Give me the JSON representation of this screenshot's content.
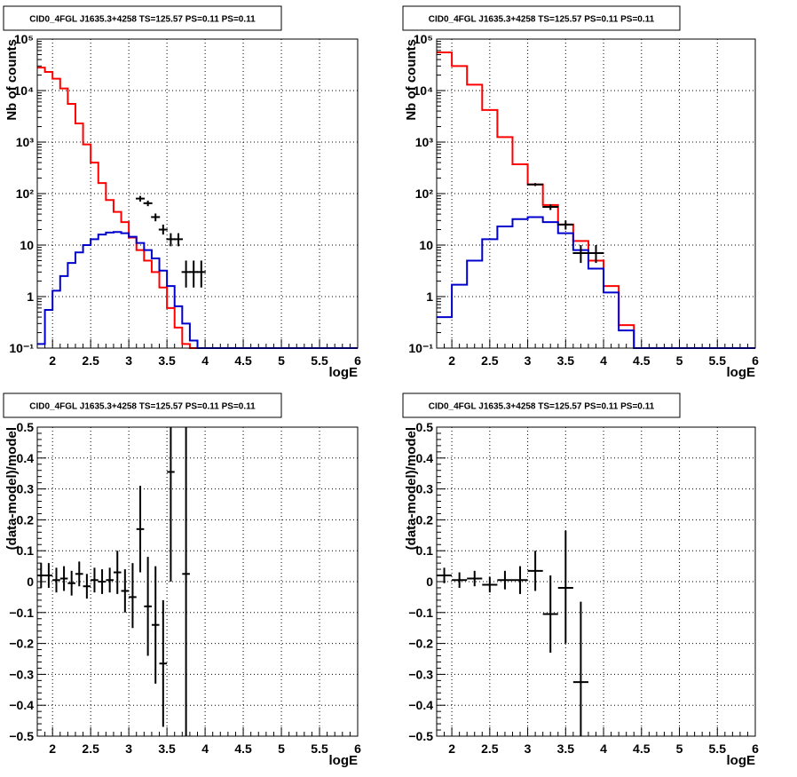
{
  "colors": {
    "model_total": "#ff0000",
    "model_source": "#0000cc",
    "data": "#000000",
    "grid": "#000000"
  },
  "chart_data": [
    {
      "type": "line",
      "title": "CID0_4FGL J1635.3+4258 TS=125.57 PS=0.11 PS=0.11",
      "xlabel": "logE",
      "ylabel": "Nb of counts",
      "ylog": true,
      "xlim": [
        1.8,
        6.0
      ],
      "ylim": [
        0.1,
        100000
      ],
      "grid": true,
      "x_ticks": [
        {
          "v": 2,
          "t": "2"
        },
        {
          "v": 2.5,
          "t": "2.5"
        },
        {
          "v": 3,
          "t": "3"
        },
        {
          "v": 3.5,
          "t": "3.5"
        },
        {
          "v": 4,
          "t": "4"
        },
        {
          "v": 4.5,
          "t": "4.5"
        },
        {
          "v": 5,
          "t": "5"
        },
        {
          "v": 5.5,
          "t": "5.5"
        },
        {
          "v": 6,
          "t": "6"
        }
      ],
      "y_ticks": [
        {
          "v": 0.1,
          "t": "10⁻¹"
        },
        {
          "v": 1,
          "t": "1"
        },
        {
          "v": 10,
          "t": "10"
        },
        {
          "v": 100,
          "t": "10²"
        },
        {
          "v": 1000,
          "t": "10³"
        },
        {
          "v": 10000,
          "t": "10⁴"
        },
        {
          "v": 100000,
          "t": "10⁵"
        }
      ],
      "bin_edges": [
        1.8,
        1.9,
        2.0,
        2.1,
        2.2,
        2.3,
        2.4,
        2.5,
        2.6,
        2.7,
        2.8,
        2.9,
        3.0,
        3.1,
        3.2,
        3.3,
        3.4,
        3.5,
        3.6,
        3.7,
        3.8,
        3.9,
        4.0,
        4.1,
        4.2,
        4.3,
        4.4,
        4.5,
        4.6,
        4.7,
        4.8,
        4.9,
        5.0,
        5.1,
        5.2,
        5.3,
        5.4,
        5.5,
        5.6,
        5.7,
        5.8,
        5.9,
        6.0
      ],
      "series": [
        {
          "color": "#ff0000",
          "values": [
            28000,
            23000,
            17000,
            11000,
            5500,
            2300,
            900,
            400,
            160,
            75,
            44,
            28,
            14,
            8,
            5,
            3,
            1.5,
            0.6,
            0.25,
            0.12,
            0.1,
            0.1,
            0.1,
            0.1,
            0.1,
            0.1,
            0.1,
            0.1,
            0.1,
            0.1,
            0.1,
            0.1,
            0.1,
            0.1,
            0.1,
            0.1,
            0.1,
            0.1,
            0.1,
            0.1,
            0.1,
            0.1
          ]
        },
        {
          "color": "#0000cc",
          "values": [
            0.12,
            0.55,
            1.3,
            2.5,
            4.5,
            7.2,
            10,
            13,
            16,
            17.5,
            18,
            17,
            14.5,
            11,
            8,
            5.5,
            3.2,
            1.6,
            0.65,
            0.3,
            0.14,
            0.1,
            0.1,
            0.1,
            0.1,
            0.1,
            0.1,
            0.1,
            0.1,
            0.1,
            0.1,
            0.1,
            0.1,
            0.1,
            0.1,
            0.1,
            0.1,
            0.1,
            0.1,
            0.1,
            0.1,
            0.1
          ]
        }
      ],
      "data_points": [
        {
          "x": 3.15,
          "y": 80,
          "ylo": 70,
          "yhi": 90
        },
        {
          "x": 3.25,
          "y": 65,
          "ylo": 57,
          "yhi": 73
        },
        {
          "x": 3.35,
          "y": 35,
          "ylo": 29,
          "yhi": 41
        },
        {
          "x": 3.45,
          "y": 20,
          "ylo": 16,
          "yhi": 25
        },
        {
          "x": 3.55,
          "y": 13,
          "ylo": 9.5,
          "yhi": 17
        },
        {
          "x": 3.65,
          "y": 13,
          "ylo": 9.5,
          "yhi": 17
        },
        {
          "x": 3.75,
          "y": 3,
          "ylo": 1.5,
          "yhi": 5
        },
        {
          "x": 3.85,
          "y": 3,
          "ylo": 1.5,
          "yhi": 5
        },
        {
          "x": 3.95,
          "y": 3,
          "ylo": 1.5,
          "yhi": 5
        }
      ]
    },
    {
      "type": "line",
      "title": "CID0_4FGL J1635.3+4258 TS=125.57 PS=0.11 PS=0.11",
      "xlabel": "logE",
      "ylabel": "Nb of counts",
      "ylog": true,
      "xlim": [
        1.8,
        6.0
      ],
      "ylim": [
        0.1,
        100000
      ],
      "grid": true,
      "x_ticks": [
        {
          "v": 2,
          "t": "2"
        },
        {
          "v": 2.5,
          "t": "2.5"
        },
        {
          "v": 3,
          "t": "3"
        },
        {
          "v": 3.5,
          "t": "3.5"
        },
        {
          "v": 4,
          "t": "4"
        },
        {
          "v": 4.5,
          "t": "4.5"
        },
        {
          "v": 5,
          "t": "5"
        },
        {
          "v": 5.5,
          "t": "5.5"
        },
        {
          "v": 6,
          "t": "6"
        }
      ],
      "y_ticks": [
        {
          "v": 0.1,
          "t": "10⁻¹"
        },
        {
          "v": 1,
          "t": "1"
        },
        {
          "v": 10,
          "t": "10"
        },
        {
          "v": 100,
          "t": "10²"
        },
        {
          "v": 1000,
          "t": "10³"
        },
        {
          "v": 10000,
          "t": "10⁴"
        },
        {
          "v": 100000,
          "t": "10⁵"
        }
      ],
      "bin_edges": [
        1.8,
        2.0,
        2.2,
        2.4,
        2.6,
        2.8,
        3.0,
        3.2,
        3.4,
        3.6,
        3.8,
        4.0,
        4.2,
        4.4,
        4.6,
        4.8,
        5.0,
        5.2,
        5.4,
        5.6,
        5.8,
        6.0
      ],
      "series": [
        {
          "color": "#ff0000",
          "values": [
            55000,
            30000,
            13000,
            4200,
            1250,
            370,
            150,
            60,
            25,
            12,
            5,
            1.6,
            0.28,
            0.1,
            0.1,
            0.1,
            0.1,
            0.1,
            0.1,
            0.1,
            0.1
          ]
        },
        {
          "color": "#0000cc",
          "values": [
            0.4,
            1.7,
            5,
            13,
            23,
            32,
            35,
            28,
            17,
            8,
            3.5,
            1.2,
            0.22,
            0.1,
            0.1,
            0.1,
            0.1,
            0.1,
            0.1,
            0.1,
            0.1
          ]
        }
      ],
      "data_points": [
        {
          "x": 3.1,
          "y": 150,
          "ylo": 140,
          "yhi": 160
        },
        {
          "x": 3.3,
          "y": 55,
          "ylo": 48,
          "yhi": 62
        },
        {
          "x": 3.5,
          "y": 25,
          "ylo": 20,
          "yhi": 30
        },
        {
          "x": 3.7,
          "y": 7,
          "ylo": 4.5,
          "yhi": 10
        },
        {
          "x": 3.9,
          "y": 7,
          "ylo": 4.5,
          "yhi": 10
        }
      ]
    },
    {
      "type": "scatter",
      "title": "CID0_4FGL J1635.3+4258 TS=125.57 PS=0.11 PS=0.11",
      "xlabel": "logE",
      "ylabel": "(data-model)/model",
      "ylog": false,
      "xlim": [
        1.8,
        6.0
      ],
      "ylim": [
        -0.5,
        0.5
      ],
      "grid": true,
      "x_ticks": [
        {
          "v": 2,
          "t": "2"
        },
        {
          "v": 2.5,
          "t": "2.5"
        },
        {
          "v": 3,
          "t": "3"
        },
        {
          "v": 3.5,
          "t": "3.5"
        },
        {
          "v": 4,
          "t": "4"
        },
        {
          "v": 4.5,
          "t": "4.5"
        },
        {
          "v": 5,
          "t": "5"
        },
        {
          "v": 5.5,
          "t": "5.5"
        },
        {
          "v": 6,
          "t": "6"
        }
      ],
      "y_ticks": [
        {
          "v": -0.5,
          "t": "−0.5"
        },
        {
          "v": -0.4,
          "t": "−0.4"
        },
        {
          "v": -0.3,
          "t": "−0.3"
        },
        {
          "v": -0.2,
          "t": "−0.2"
        },
        {
          "v": -0.1,
          "t": "−0.1"
        },
        {
          "v": 0,
          "t": "0"
        },
        {
          "v": 0.1,
          "t": "0.1"
        },
        {
          "v": 0.2,
          "t": "0.2"
        },
        {
          "v": 0.3,
          "t": "0.3"
        },
        {
          "v": 0.4,
          "t": "0.4"
        },
        {
          "v": 0.5,
          "t": "0.5"
        }
      ],
      "data_points": [
        {
          "x": 1.85,
          "y": 0.02,
          "ylo": -0.02,
          "yhi": 0.06,
          "xw": 0.05
        },
        {
          "x": 1.95,
          "y": 0.02,
          "ylo": -0.02,
          "yhi": 0.06,
          "xw": 0.05
        },
        {
          "x": 2.05,
          "y": 0.005,
          "ylo": -0.035,
          "yhi": 0.045,
          "xw": 0.05
        },
        {
          "x": 2.15,
          "y": 0.01,
          "ylo": -0.03,
          "yhi": 0.05,
          "xw": 0.05
        },
        {
          "x": 2.25,
          "y": -0.005,
          "ylo": -0.045,
          "yhi": 0.035,
          "xw": 0.05
        },
        {
          "x": 2.35,
          "y": 0.025,
          "ylo": -0.015,
          "yhi": 0.065,
          "xw": 0.05
        },
        {
          "x": 2.45,
          "y": -0.015,
          "ylo": -0.055,
          "yhi": 0.025,
          "xw": 0.05
        },
        {
          "x": 2.55,
          "y": 0.005,
          "ylo": -0.035,
          "yhi": 0.045,
          "xw": 0.05
        },
        {
          "x": 2.65,
          "y": 0.0,
          "ylo": -0.04,
          "yhi": 0.04,
          "xw": 0.05
        },
        {
          "x": 2.75,
          "y": 0.005,
          "ylo": -0.035,
          "yhi": 0.045,
          "xw": 0.05
        },
        {
          "x": 2.85,
          "y": 0.03,
          "ylo": -0.04,
          "yhi": 0.1,
          "xw": 0.05
        },
        {
          "x": 2.95,
          "y": -0.03,
          "ylo": -0.1,
          "yhi": 0.04,
          "xw": 0.05
        },
        {
          "x": 3.05,
          "y": -0.05,
          "ylo": -0.15,
          "yhi": 0.06,
          "xw": 0.05
        },
        {
          "x": 3.15,
          "y": 0.17,
          "ylo": 0.03,
          "yhi": 0.31,
          "xw": 0.05
        },
        {
          "x": 3.25,
          "y": -0.08,
          "ylo": -0.24,
          "yhi": 0.08,
          "xw": 0.05
        },
        {
          "x": 3.35,
          "y": -0.14,
          "ylo": -0.33,
          "yhi": 0.05,
          "xw": 0.05
        },
        {
          "x": 3.45,
          "y": -0.265,
          "ylo": -0.47,
          "yhi": -0.06,
          "xw": 0.05
        },
        {
          "x": 3.55,
          "y": 0.355,
          "ylo": 0.0,
          "yhi": 0.5,
          "xw": 0.05
        },
        {
          "x": 3.75,
          "y": 0.025,
          "ylo": -0.5,
          "yhi": 0.5,
          "xw": 0.05
        }
      ]
    },
    {
      "type": "scatter",
      "title": "CID0_4FGL J1635.3+4258 TS=125.57 PS=0.11 PS=0.11",
      "xlabel": "logE",
      "ylabel": "(data-model)/model",
      "ylog": false,
      "xlim": [
        1.8,
        6.0
      ],
      "ylim": [
        -0.5,
        0.5
      ],
      "grid": true,
      "x_ticks": [
        {
          "v": 2,
          "t": "2"
        },
        {
          "v": 2.5,
          "t": "2.5"
        },
        {
          "v": 3,
          "t": "3"
        },
        {
          "v": 3.5,
          "t": "3.5"
        },
        {
          "v": 4,
          "t": "4"
        },
        {
          "v": 4.5,
          "t": "4.5"
        },
        {
          "v": 5,
          "t": "5"
        },
        {
          "v": 5.5,
          "t": "5.5"
        },
        {
          "v": 6,
          "t": "6"
        }
      ],
      "y_ticks": [
        {
          "v": -0.5,
          "t": "−0.5"
        },
        {
          "v": -0.4,
          "t": "−0.4"
        },
        {
          "v": -0.3,
          "t": "−0.3"
        },
        {
          "v": -0.2,
          "t": "−0.2"
        },
        {
          "v": -0.1,
          "t": "−0.1"
        },
        {
          "v": 0,
          "t": "0"
        },
        {
          "v": 0.1,
          "t": "0.1"
        },
        {
          "v": 0.2,
          "t": "0.2"
        },
        {
          "v": 0.3,
          "t": "0.3"
        },
        {
          "v": 0.4,
          "t": "0.4"
        },
        {
          "v": 0.5,
          "t": "0.5"
        }
      ],
      "data_points": [
        {
          "x": 1.9,
          "y": 0.02,
          "ylo": -0.005,
          "yhi": 0.045,
          "xw": 0.1
        },
        {
          "x": 2.1,
          "y": 0.005,
          "ylo": -0.02,
          "yhi": 0.03,
          "xw": 0.1
        },
        {
          "x": 2.3,
          "y": 0.01,
          "ylo": -0.015,
          "yhi": 0.035,
          "xw": 0.1
        },
        {
          "x": 2.5,
          "y": -0.01,
          "ylo": -0.035,
          "yhi": 0.015,
          "xw": 0.1
        },
        {
          "x": 2.7,
          "y": 0.005,
          "ylo": -0.025,
          "yhi": 0.035,
          "xw": 0.1
        },
        {
          "x": 2.9,
          "y": 0.005,
          "ylo": -0.04,
          "yhi": 0.05,
          "xw": 0.1
        },
        {
          "x": 3.1,
          "y": 0.035,
          "ylo": -0.03,
          "yhi": 0.1,
          "xw": 0.1
        },
        {
          "x": 3.3,
          "y": -0.105,
          "ylo": -0.23,
          "yhi": 0.02,
          "xw": 0.1
        },
        {
          "x": 3.5,
          "y": -0.02,
          "ylo": -0.2,
          "yhi": 0.165,
          "xw": 0.1
        },
        {
          "x": 3.7,
          "y": -0.325,
          "ylo": -0.5,
          "yhi": -0.065,
          "xw": 0.1
        }
      ]
    }
  ]
}
